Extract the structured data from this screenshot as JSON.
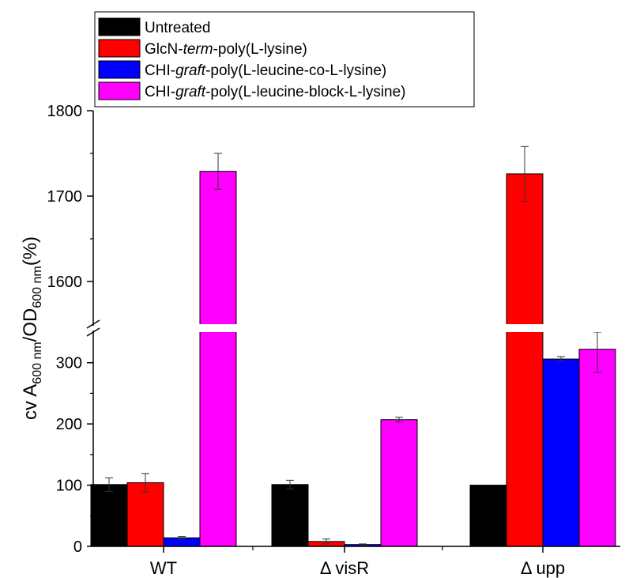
{
  "chart_data": {
    "type": "bar",
    "categories": [
      "WT",
      "Δ visR",
      "Δ upp"
    ],
    "series": [
      {
        "name": "Untreated",
        "color": "#000000",
        "values": [
          101,
          101,
          100
        ],
        "errors": [
          11,
          7,
          0
        ]
      },
      {
        "name": "GlcN-term-poly(L-lysine)",
        "color": "#ff0000",
        "values": [
          104,
          8,
          1726
        ],
        "errors": [
          15,
          4,
          32
        ]
      },
      {
        "name": "CHI-graft-poly(L-leucine-co-L-lysine)",
        "color": "#0000ff",
        "values": [
          14,
          3,
          306
        ],
        "errors": [
          2,
          1,
          4
        ]
      },
      {
        "name": "CHI-graft-poly(L-leucine-block-L-lysine)",
        "color": "#ff00ff",
        "values": [
          1729,
          207,
          322
        ],
        "errors": [
          21,
          4,
          38
        ]
      }
    ],
    "legend_entries": [
      {
        "parts": [
          {
            "t": "Untreated",
            "i": false
          }
        ]
      },
      {
        "parts": [
          {
            "t": "GlcN-",
            "i": false
          },
          {
            "t": "term",
            "i": true
          },
          {
            "t": "-poly(L-lysine)",
            "i": false
          }
        ]
      },
      {
        "parts": [
          {
            "t": "CHI-",
            "i": false
          },
          {
            "t": "graft",
            "i": true
          },
          {
            "t": "-poly(L-leucine-co-L-lysine)",
            "i": false
          }
        ]
      },
      {
        "parts": [
          {
            "t": "CHI-",
            "i": false
          },
          {
            "t": "graft",
            "i": true
          },
          {
            "t": "-poly(L-leucine-block-L-lysine)",
            "i": false
          }
        ]
      }
    ],
    "legend_position": "top-left",
    "ylabel": {
      "prefix": "cv A",
      "sub1": "600 nm",
      "mid": "/OD",
      "sub2": "600 nm",
      "suffix": "(%)"
    },
    "y_axis": {
      "broken": true,
      "lower_range": [
        0,
        350
      ],
      "upper_range": [
        1550,
        1800
      ],
      "lower_ticks": [
        0,
        100,
        200,
        300
      ],
      "upper_ticks": [
        1600,
        1700,
        1800
      ]
    },
    "grid": false
  }
}
